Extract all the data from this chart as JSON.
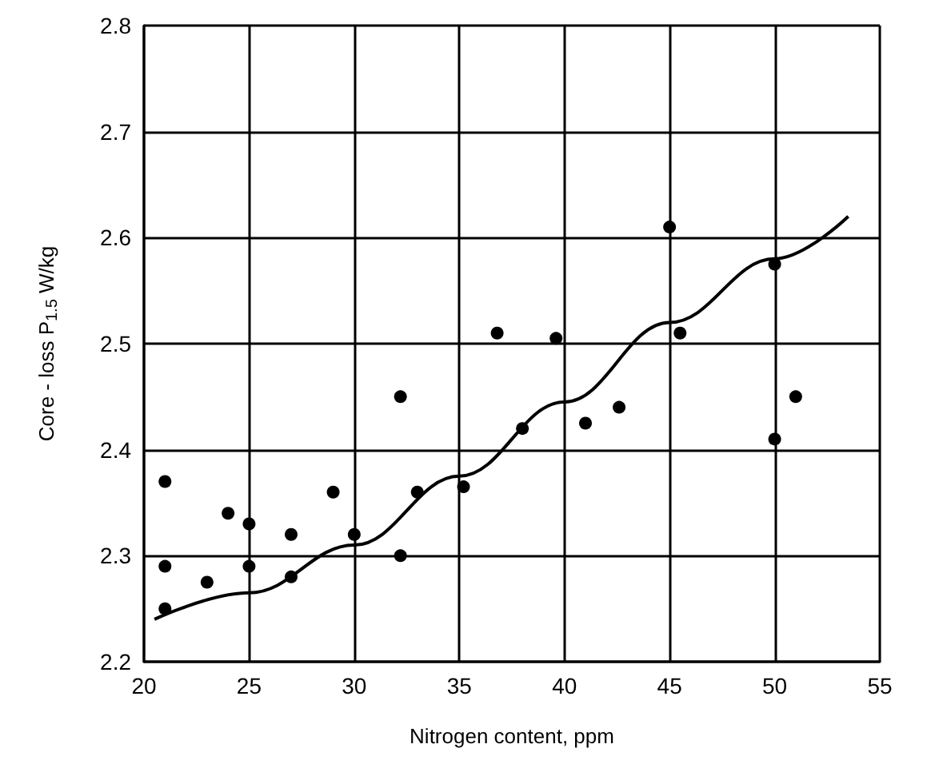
{
  "chart_data": {
    "type": "scatter",
    "xlabel": "Nitrogen content, ppm",
    "ylabel": "Core - loss P$_{1.5}$ W/kg",
    "xlim": [
      20,
      55
    ],
    "xticks": [
      20,
      25,
      30,
      35,
      40,
      45,
      50,
      55
    ],
    "ylim": [
      2.2,
      2.8
    ],
    "yticks": [
      2.2,
      2.3,
      2.4,
      2.5,
      2.6,
      2.7,
      2.8
    ],
    "grid": true,
    "marker": "circle",
    "series": [
      {
        "type": "scatter",
        "color": "#000000",
        "x": [
          21,
          21,
          21,
          23,
          24,
          25,
          25,
          27,
          27,
          29,
          30,
          32.2,
          32.2,
          33,
          35.2,
          36.8,
          38,
          39.6,
          41,
          42.6,
          45,
          45.5,
          50,
          50,
          51
        ],
        "values": [
          2.37,
          2.29,
          2.25,
          2.275,
          2.34,
          2.33,
          2.29,
          2.32,
          2.28,
          2.36,
          2.32,
          2.45,
          2.3,
          2.36,
          2.365,
          2.51,
          2.42,
          2.505,
          2.425,
          2.44,
          2.61,
          2.51,
          2.575,
          2.41,
          2.45
        ]
      },
      {
        "type": "line",
        "color": "#000000",
        "marker": "none",
        "x": [
          20.5,
          25,
          30,
          35,
          40,
          45,
          50,
          53.5
        ],
        "values": [
          2.24,
          2.265,
          2.31,
          2.375,
          2.445,
          2.52,
          2.58,
          2.62
        ]
      }
    ]
  }
}
